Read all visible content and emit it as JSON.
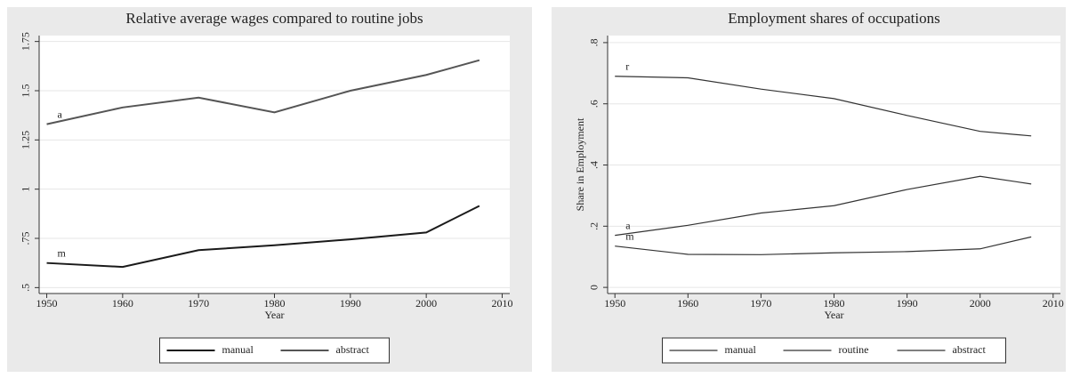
{
  "chart_data": [
    {
      "type": "line",
      "title": "Relative average wages compared to routine jobs",
      "x_label": "Year",
      "x": [
        1950,
        1960,
        1970,
        1980,
        1990,
        2000,
        2007
      ],
      "series": [
        {
          "name": "manual",
          "label": "m",
          "color": "#1a1a1a",
          "width": 2,
          "values": [
            0.625,
            0.605,
            0.69,
            0.715,
            0.745,
            0.78,
            0.915
          ]
        },
        {
          "name": "abstract",
          "label": "a",
          "color": "#555555",
          "width": 2,
          "values": [
            1.33,
            1.415,
            1.465,
            1.39,
            1.5,
            1.58,
            1.655
          ]
        }
      ],
      "xlim": [
        1949,
        2011
      ],
      "xticks": [
        1950,
        1960,
        1970,
        1980,
        1990,
        2000,
        2010
      ],
      "ylim": [
        0.47,
        1.78
      ],
      "yticks": [
        {
          "value": 0.5,
          "label": ".5"
        },
        {
          "value": 0.75,
          "label": ".75"
        },
        1,
        1.25,
        1.5,
        1.75
      ],
      "grid": true
    },
    {
      "type": "line",
      "title": "Employment shares of occupations",
      "x_label": "Year",
      "y_label": "Share in Employment",
      "x": [
        1950,
        1960,
        1970,
        1980,
        1990,
        2000,
        2007
      ],
      "series": [
        {
          "name": "manual",
          "label": "m",
          "color": "#333333",
          "width": 1.2,
          "values": [
            0.135,
            0.108,
            0.107,
            0.113,
            0.117,
            0.126,
            0.165
          ]
        },
        {
          "name": "routine",
          "label": "r",
          "color": "#333333",
          "width": 1.2,
          "values": [
            0.69,
            0.685,
            0.648,
            0.617,
            0.562,
            0.51,
            0.495
          ]
        },
        {
          "name": "abstract",
          "label": "a",
          "color": "#333333",
          "width": 1.2,
          "values": [
            0.17,
            0.203,
            0.243,
            0.267,
            0.32,
            0.363,
            0.338
          ]
        }
      ],
      "xlim": [
        1949,
        2011
      ],
      "xticks": [
        1950,
        1960,
        1970,
        1980,
        1990,
        2000,
        2010
      ],
      "ylim": [
        -0.02,
        0.823
      ],
      "yticks": [
        0,
        {
          "value": 0.2,
          "label": ".2"
        },
        {
          "value": 0.4,
          "label": ".4"
        },
        {
          "value": 0.6,
          "label": ".6"
        },
        {
          "value": 0.8,
          "label": ".8"
        }
      ],
      "grid": true
    }
  ]
}
